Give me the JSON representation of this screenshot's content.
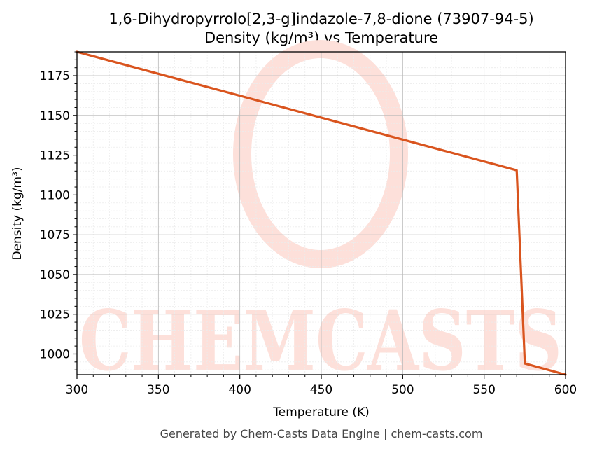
{
  "chart_data": {
    "type": "line",
    "title": "1,6-Dihydropyrrolo[2,3-g]indazole-7,8-dione (73907-94-5)",
    "subtitle": "Density (kg/m³) vs Temperature",
    "xlabel": "Temperature (K)",
    "ylabel": "Density (kg/m³)",
    "xlim": [
      300,
      600
    ],
    "ylim": [
      987,
      1190
    ],
    "xticks": [
      300,
      350,
      400,
      450,
      500,
      550,
      600
    ],
    "yticks": [
      1000,
      1025,
      1050,
      1075,
      1100,
      1125,
      1150,
      1175
    ],
    "grid": true,
    "series": [
      {
        "color": "#d9541e",
        "x": [
          300,
          570,
          575,
          600
        ],
        "y": [
          1190,
          1115.5,
          994,
          987
        ]
      }
    ]
  },
  "watermark": {
    "text": "CHEMCASTS",
    "color": "#fde0da"
  },
  "footer": "Generated by Chem-Casts Data Engine | chem-casts.com"
}
